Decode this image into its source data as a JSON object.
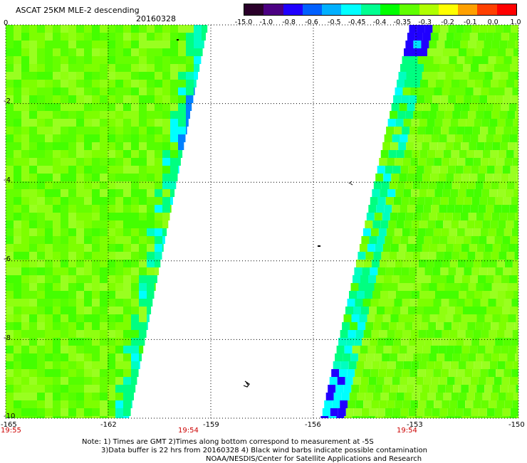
{
  "header": {
    "title": "ASCAT 25KM MLE-2 descending",
    "date": "20160328"
  },
  "colorbar": {
    "labels": [
      "-15.0",
      "-1.0",
      "-0.8",
      "-0.6",
      "-0.5",
      "-0.45",
      "-0.4",
      "-0.35",
      "-0.3",
      "-0.2",
      "-0.1",
      "0.0",
      "1.0"
    ],
    "colors": [
      "#2a002a",
      "#4b0082",
      "#2000ff",
      "#0060ff",
      "#00b0ff",
      "#00ffff",
      "#00ff90",
      "#00ff00",
      "#60ff00",
      "#b0ff00",
      "#ffff00",
      "#ffa000",
      "#ff4000",
      "#ff0000"
    ]
  },
  "axes": {
    "lat_labels": [
      "0",
      "-2",
      "-4",
      "-6",
      "-8",
      "-10"
    ],
    "lon_labels": [
      "-165",
      "-162",
      "-159",
      "-156",
      "-153",
      "-150"
    ],
    "lat_values": [
      0,
      -2,
      -4,
      -6,
      -8,
      -10
    ],
    "lon_values": [
      -165,
      -162,
      -159,
      -156,
      -153,
      -150
    ]
  },
  "times": {
    "left": "19:55",
    "middle_left": "19:54",
    "middle_right": "19:54"
  },
  "footer": {
    "line1": "Note: 1) Times are GMT 2)Times along bottom correspond to measurement at -5S",
    "line2": "3)Data buffer is 22 hrs from 20160328 4) Black wind barbs indicate possible contamination",
    "line3": "NOAA/NESDIS/Center for Satellite Applications and Research"
  },
  "swaths": [
    {
      "name": "west-swath",
      "lat_top": 0,
      "lat_bottom": -10,
      "west_lon": -165,
      "east_lon_top": -159.1,
      "east_lon_bottom": -161.4
    },
    {
      "name": "east-swath",
      "lat_top": 0,
      "lat_bottom": -10,
      "west_lon_top": -153.2,
      "west_lon_bottom": -155.8,
      "east_lon": -150
    }
  ]
}
